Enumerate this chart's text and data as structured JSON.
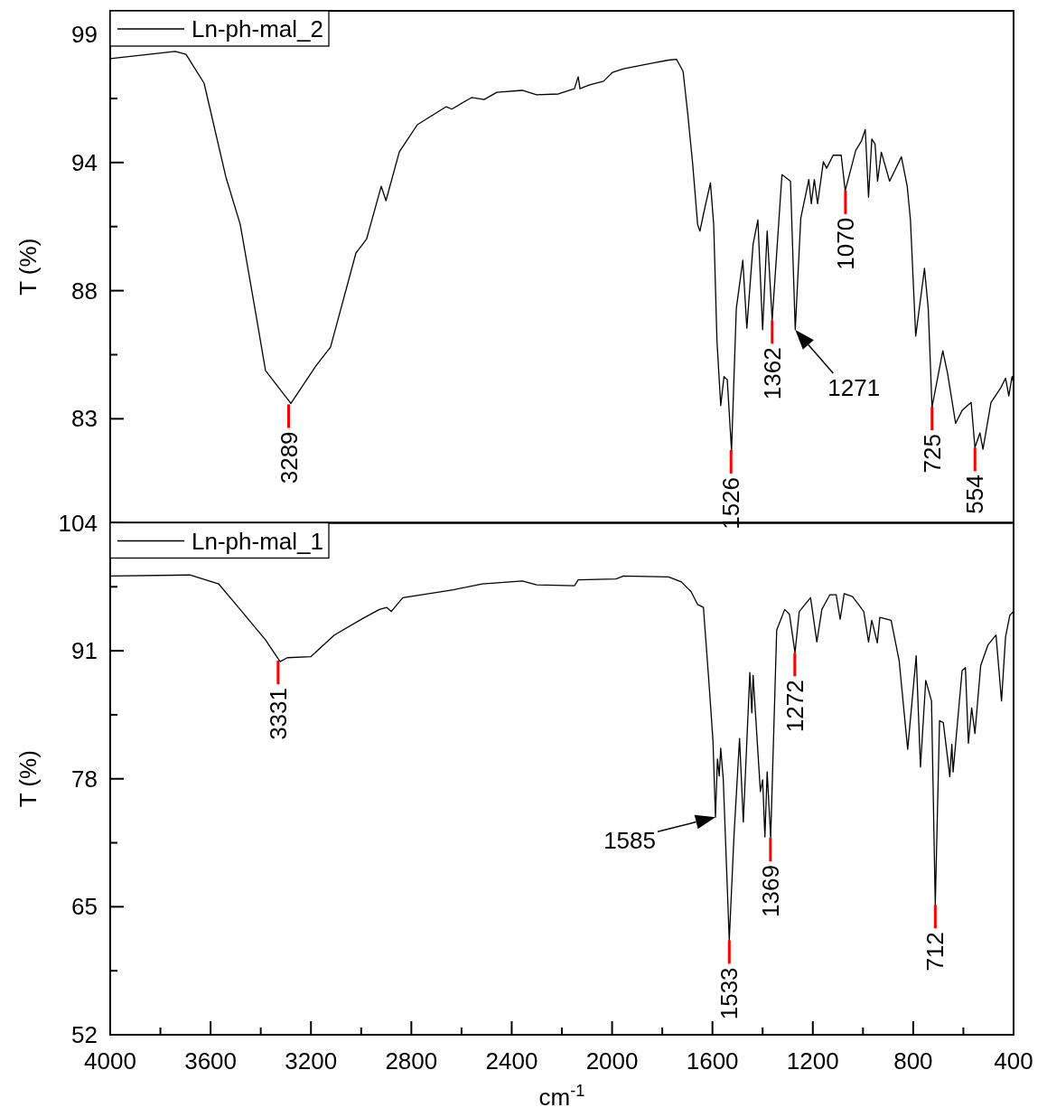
{
  "chart_data": [
    {
      "type": "line",
      "ylabel": "T (%)",
      "legend": "top left",
      "tick_labels": "y",
      "grid": false,
      "xlim": [
        4000,
        400
      ],
      "ylim": [
        78.67,
        99.98
      ],
      "yticks": [
        83,
        {
          "value": 85.667,
          "label": null
        },
        {
          "value": 88.333,
          "label": "88"
        },
        {
          "value": 91,
          "label": null
        },
        {
          "value": 93.667,
          "label": "94"
        },
        {
          "value": 96.333,
          "label": null
        },
        99
      ],
      "series": [
        {
          "name": "Ln-ph-mal_2",
          "color": "#000000",
          "x": [
            4000,
            3741,
            3698,
            3626,
            3539,
            3482,
            3424,
            3381,
            3280,
            3179,
            3122,
            3021,
            2978,
            2920,
            2901,
            2848,
            2776,
            2661,
            2639,
            2560,
            2510,
            2459,
            2358,
            2301,
            2214,
            2150,
            2135,
            2128,
            2092,
            2034,
            1998,
            1955,
            1840,
            1775,
            1743,
            1717,
            1698,
            1679,
            1659,
            1650,
            1634,
            1608,
            1595,
            1582,
            1567,
            1554,
            1541,
            1524,
            1505,
            1479,
            1463,
            1438,
            1419,
            1400,
            1382,
            1362,
            1323,
            1289,
            1270,
            1248,
            1216,
            1206,
            1194,
            1181,
            1158,
            1145,
            1119,
            1087,
            1071,
            1029,
            1006,
            991,
            978,
            965,
            952,
            942,
            927,
            894,
            847,
            824,
            811,
            790,
            755,
            740,
            725,
            682,
            663,
            631,
            605,
            569,
            554,
            534,
            522,
            490,
            451,
            432,
            419,
            406,
            400
          ],
          "values": [
            97.99,
            98.29,
            98.17,
            96.97,
            93.06,
            91.1,
            87.63,
            85.0,
            83.64,
            85.22,
            85.98,
            89.89,
            90.49,
            92.68,
            92.08,
            94.11,
            95.24,
            95.99,
            95.89,
            96.37,
            96.29,
            96.59,
            96.67,
            96.49,
            96.52,
            96.74,
            97.24,
            96.74,
            96.89,
            97.05,
            97.42,
            97.57,
            97.8,
            97.93,
            97.96,
            97.46,
            95.65,
            93.63,
            91.08,
            90.81,
            91.61,
            92.82,
            91.08,
            86.24,
            83.55,
            84.76,
            84.62,
            81.67,
            87.58,
            89.6,
            86.77,
            90.27,
            91.28,
            86.71,
            90.81,
            87.11,
            93.16,
            92.89,
            86.71,
            91.35,
            92.96,
            91.95,
            92.96,
            91.95,
            93.7,
            93.43,
            93.97,
            93.97,
            92.49,
            94.17,
            94.57,
            95.04,
            92.22,
            94.64,
            94.44,
            92.89,
            94.1,
            92.89,
            93.9,
            92.69,
            91.28,
            86.44,
            89.26,
            87.58,
            83.48,
            85.83,
            84.89,
            82.81,
            83.35,
            83.68,
            81.8,
            82.41,
            81.73,
            83.68,
            84.29,
            84.69,
            83.95,
            84.76,
            84.49
          ]
        }
      ],
      "annotations": [
        {
          "text": "3289",
          "x": 3289,
          "y": 83.6
        },
        {
          "text": "1526",
          "x": 1526,
          "y": 81.7
        },
        {
          "text": "1362",
          "x": 1362,
          "y": 87.1
        },
        {
          "text": "1271",
          "x": 1270,
          "y": 86.7
        },
        {
          "text": "1070",
          "x": 1070,
          "y": 92.5
        },
        {
          "text": "725",
          "x": 725,
          "y": 83.5
        },
        {
          "text": "554",
          "x": 554,
          "y": 81.8
        }
      ]
    },
    {
      "type": "line",
      "xlabel": "cm$^{-1}$",
      "ylabel": "T (%)",
      "legend": "top left",
      "grid": false,
      "xlim": [
        4000,
        400
      ],
      "xticks": [
        4000,
        {
          "value": 3800,
          "label": null
        },
        3600,
        {
          "value": 3400,
          "label": null
        },
        3200,
        {
          "value": 3000,
          "label": null
        },
        2800,
        {
          "value": 2600,
          "label": null
        },
        2400,
        {
          "value": 2200,
          "label": null
        },
        2000,
        {
          "value": 1800,
          "label": null
        },
        1600,
        {
          "value": 1400,
          "label": null
        },
        1200,
        {
          "value": 1000,
          "label": null
        },
        800,
        {
          "value": 600,
          "label": null
        },
        400
      ],
      "ylim": [
        52,
        104
      ],
      "yticks": [
        52,
        {
          "value": 58.5,
          "label": null
        },
        65,
        {
          "value": 71.5,
          "label": null
        },
        78,
        {
          "value": 84.5,
          "label": null
        },
        91,
        {
          "value": 97.5,
          "label": null
        },
        104
      ],
      "series": [
        {
          "name": "Ln-ph-mal_1",
          "color": "#000000",
          "x": [
            4000,
            3683,
            3568,
            3482,
            3381,
            3323,
            3294,
            3201,
            3107,
            2992,
            2927,
            2898,
            2880,
            2834,
            2632,
            2517,
            2358,
            2301,
            2150,
            2135,
            1984,
            1955,
            1775,
            1724,
            1685,
            1659,
            1636,
            1614,
            1598,
            1588,
            1580,
            1573,
            1567,
            1557,
            1533,
            1514,
            1492,
            1477,
            1451,
            1443,
            1438,
            1409,
            1400,
            1391,
            1382,
            1368,
            1344,
            1312,
            1293,
            1271,
            1254,
            1209,
            1184,
            1164,
            1132,
            1107,
            1091,
            1075,
            1042,
            997,
            978,
            965,
            943,
            933,
            888,
            856,
            822,
            788,
            771,
            750,
            727,
            712,
            695,
            680,
            654,
            646,
            641,
            605,
            592,
            580,
            567,
            554,
            531,
            502,
            470,
            448,
            432,
            415,
            400
          ],
          "values": [
            98.6,
            98.7,
            97.8,
            95.2,
            92.1,
            89.9,
            90.3,
            90.4,
            92.6,
            94.3,
            95.2,
            95.4,
            95.0,
            96.4,
            97.2,
            97.8,
            98.1,
            97.7,
            97.6,
            98.2,
            98.3,
            98.6,
            98.5,
            98.0,
            97.0,
            95.7,
            95.4,
            87.8,
            81.9,
            74.1,
            80.0,
            78.3,
            81.1,
            78.0,
            61.6,
            72.3,
            82.1,
            73.6,
            88.8,
            84.7,
            88.5,
            76.7,
            77.9,
            72.1,
            78.7,
            72.0,
            93.1,
            95.2,
            94.7,
            90.8,
            95.0,
            96.4,
            91.9,
            95.2,
            96.7,
            96.7,
            94.2,
            96.8,
            96.5,
            95.0,
            91.9,
            94.1,
            91.8,
            94.4,
            94.1,
            90.0,
            81.0,
            90.5,
            79.2,
            88.0,
            85.9,
            65.2,
            83.9,
            83.7,
            78.2,
            81.5,
            78.7,
            89.0,
            89.3,
            81.6,
            85.2,
            82.6,
            89.5,
            91.6,
            92.6,
            85.9,
            92.4,
            94.6,
            95.0
          ]
        }
      ],
      "annotations": [
        {
          "text": "3331",
          "x": 3331,
          "y": 90.0
        },
        {
          "text": "1533",
          "x": 1533,
          "y": 61.6
        },
        {
          "text": "1585",
          "x": 1588,
          "y": 74.1
        },
        {
          "text": "1369",
          "x": 1369,
          "y": 72.0
        },
        {
          "text": "1272",
          "x": 1272,
          "y": 90.8
        },
        {
          "text": "712",
          "x": 712,
          "y": 65.2
        }
      ]
    }
  ]
}
